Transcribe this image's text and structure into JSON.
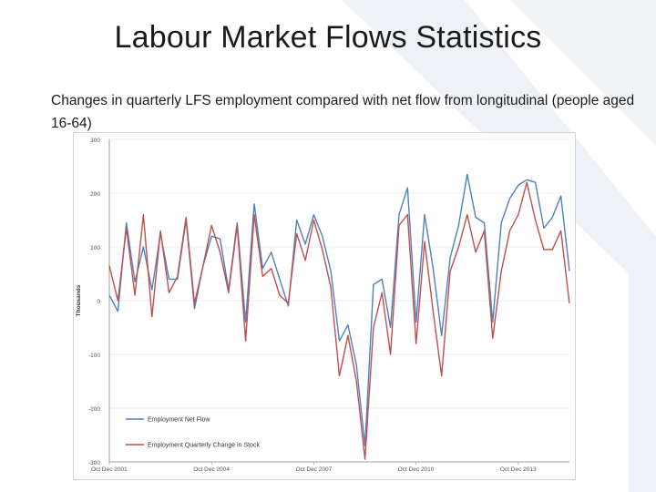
{
  "slide": {
    "title": "Labour Market Flows Statistics",
    "subtitle": "Changes in quarterly LFS employment compared with net flow from longitudinal (people aged 16-64)"
  },
  "colors": {
    "background_shape": "#e9eef3",
    "series1": "#4f81bd",
    "series2": "#c0504d",
    "axis": "#8c8c8c",
    "grid": "#d9d9d9"
  },
  "chart_data": {
    "type": "line",
    "ylabel": "Thousands",
    "xlabel": "",
    "ylim": [
      -300,
      300
    ],
    "yticks": [
      "-300",
      "-200",
      "-100",
      "0",
      "100",
      "200",
      "300"
    ],
    "ytick_values": [
      -300,
      -200,
      -100,
      0,
      100,
      200,
      300
    ],
    "x_tick_labels": [
      "Oct Dec 2001",
      "Oct Dec 2004",
      "Oct Dec 2007",
      "Oct Dec 2010",
      "Oct Dec 2013"
    ],
    "x_tick_index": [
      0,
      12,
      24,
      36,
      48
    ],
    "grid": "horizontal",
    "legend_position": "bottom-left",
    "series": [
      {
        "name": "Employment Net Flow",
        "values": [
          10,
          -20,
          145,
          35,
          100,
          20,
          125,
          40,
          40,
          150,
          -15,
          65,
          120,
          115,
          20,
          145,
          -40,
          180,
          60,
          90,
          40,
          -10,
          150,
          105,
          160,
          120,
          55,
          -75,
          -45,
          -120,
          -270,
          30,
          40,
          -50,
          160,
          210,
          -40,
          160,
          60,
          -65,
          80,
          140,
          235,
          155,
          145,
          -40,
          145,
          190,
          215,
          225,
          220,
          135,
          155,
          195,
          55
        ]
      },
      {
        "name": "Employment Quarterly Change in Stock",
        "values": [
          65,
          0,
          135,
          10,
          160,
          -30,
          130,
          15,
          45,
          155,
          -5,
          65,
          140,
          90,
          15,
          140,
          -75,
          160,
          45,
          60,
          10,
          -5,
          125,
          75,
          150,
          95,
          25,
          -140,
          -65,
          -150,
          -295,
          -50,
          15,
          -100,
          140,
          160,
          -80,
          110,
          -20,
          -140,
          55,
          100,
          160,
          90,
          130,
          -70,
          55,
          130,
          160,
          220,
          150,
          95,
          95,
          130,
          -5
        ]
      }
    ]
  }
}
